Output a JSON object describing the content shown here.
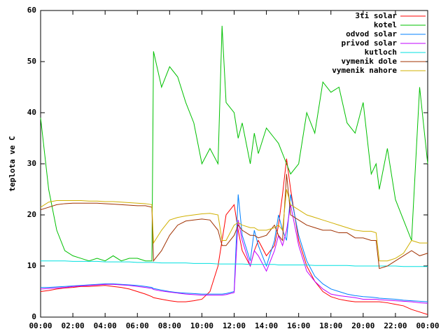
{
  "chart_data": {
    "type": "line",
    "y_label": "teplota ve C",
    "x": [
      0,
      0.5,
      1,
      1.5,
      2,
      2.5,
      3,
      3.5,
      4,
      4.5,
      5,
      5.5,
      6,
      6.5,
      6.9,
      7,
      7.5,
      8,
      8.5,
      9,
      9.5,
      10,
      10.5,
      11,
      11.25,
      11.5,
      12,
      12.25,
      12.5,
      13,
      13.25,
      13.5,
      14,
      14.5,
      14.75,
      15,
      15.25,
      15.5,
      16,
      16.5,
      17,
      17.5,
      18,
      18.5,
      19,
      19.5,
      20,
      20.5,
      20.8,
      21,
      21.5,
      22,
      22.5,
      23,
      23.5,
      24
    ],
    "xlim": [
      0,
      24
    ],
    "xticks": [
      {
        "value": 0,
        "label": "00:00"
      },
      {
        "value": 2,
        "label": "02:00"
      },
      {
        "value": 4,
        "label": "04:00"
      },
      {
        "value": 6,
        "label": "06:00"
      },
      {
        "value": 8,
        "label": "08:00"
      },
      {
        "value": 10,
        "label": "10:00"
      },
      {
        "value": 12,
        "label": "12:00"
      },
      {
        "value": 14,
        "label": "14:00"
      },
      {
        "value": 16,
        "label": "16:00"
      },
      {
        "value": 18,
        "label": "18:00"
      },
      {
        "value": 20,
        "label": "20:00"
      },
      {
        "value": 22,
        "label": "22:00"
      },
      {
        "value": 24,
        "label": "00:00"
      }
    ],
    "ylim": [
      0,
      60
    ],
    "yticks": [
      0,
      10,
      20,
      30,
      40,
      50,
      60
    ],
    "legend": "upper right",
    "series": [
      {
        "name": "3ti solar",
        "color": "#ff0000",
        "values": [
          5,
          5.2,
          5.5,
          5.7,
          5.8,
          6,
          6,
          6.1,
          6.2,
          6,
          5.8,
          5.5,
          5,
          4.5,
          4,
          3.8,
          3.5,
          3.2,
          3,
          3,
          3.2,
          3.5,
          5,
          10,
          15,
          20,
          22,
          17,
          13,
          10,
          13,
          15,
          12,
          14,
          18,
          24,
          31,
          25,
          15,
          10,
          7,
          5,
          4,
          3.5,
          3.2,
          3,
          3,
          3,
          3,
          3,
          2.8,
          2.5,
          2.2,
          1.5,
          1,
          0.5
        ]
      },
      {
        "name": "kotel",
        "color": "#00c000",
        "values": [
          39,
          25,
          17,
          13,
          12,
          11.5,
          11,
          11.5,
          11,
          12,
          11,
          11.5,
          11.5,
          11,
          11,
          52,
          45,
          49,
          47,
          42,
          38,
          30,
          33,
          30,
          57,
          42,
          40,
          35,
          38,
          30,
          36,
          32,
          37,
          35,
          34,
          32,
          30,
          28,
          30,
          40,
          36,
          46,
          44,
          45,
          38,
          36,
          42,
          28,
          30,
          25,
          33,
          23,
          19,
          15,
          45,
          30
        ]
      },
      {
        "name": "odvod solar",
        "color": "#0080ff",
        "values": [
          5.8,
          5.8,
          5.9,
          6,
          6.1,
          6.2,
          6.3,
          6.4,
          6.5,
          6.5,
          6.4,
          6.3,
          6.2,
          6,
          5.8,
          5.6,
          5.3,
          5,
          4.8,
          4.7,
          4.6,
          4.5,
          4.5,
          4.5,
          4.5,
          4.6,
          5,
          24,
          16,
          11,
          17,
          14,
          10,
          15,
          20,
          17,
          15,
          24,
          16,
          11,
          8,
          6.5,
          5.5,
          5,
          4.5,
          4.2,
          4,
          3.9,
          3.8,
          3.7,
          3.6,
          3.5,
          3.3,
          3.2,
          3.1,
          3
        ]
      },
      {
        "name": "privod solar",
        "color": "#c000ff",
        "values": [
          5.5,
          5.6,
          5.7,
          5.8,
          6,
          6.1,
          6.2,
          6.3,
          6.4,
          6.4,
          6.3,
          6.2,
          6,
          5.8,
          5.6,
          5.4,
          5.1,
          4.9,
          4.7,
          4.5,
          4.4,
          4.3,
          4.3,
          4.3,
          4.3,
          4.4,
          4.8,
          19,
          15,
          10,
          13,
          12,
          9,
          13,
          16,
          14,
          17,
          22,
          14,
          9,
          7,
          5.5,
          4.5,
          4.2,
          4,
          3.8,
          3.5,
          3.5,
          3.5,
          3.4,
          3.3,
          3.2,
          3.1,
          3,
          2.8,
          2.7
        ]
      },
      {
        "name": "kutloch",
        "color": "#00e0e0",
        "values": [
          11,
          11,
          11,
          11,
          10.9,
          10.9,
          10.9,
          10.9,
          10.8,
          10.8,
          10.8,
          10.8,
          10.7,
          10.7,
          10.7,
          10.7,
          10.6,
          10.6,
          10.6,
          10.6,
          10.5,
          10.5,
          10.5,
          10.4,
          10.4,
          10.4,
          10.4,
          10.4,
          10.4,
          10.3,
          10.3,
          10.3,
          10.3,
          10.3,
          10.2,
          10.2,
          10.2,
          10.2,
          10.2,
          10.2,
          10.1,
          10.1,
          10.1,
          10.1,
          10.1,
          10,
          10,
          10,
          10,
          10,
          10,
          10,
          9.9,
          9.9,
          9.9,
          9.9
        ]
      },
      {
        "name": "vymenik dole",
        "color": "#a03000",
        "values": [
          21,
          21.5,
          22,
          22.2,
          22.3,
          22.3,
          22.3,
          22.3,
          22.2,
          22.1,
          22,
          21.9,
          21.8,
          21.8,
          21.5,
          11,
          13,
          16,
          18,
          18.8,
          19,
          19.2,
          19,
          17,
          14,
          14,
          16,
          18,
          17,
          16,
          16,
          15.5,
          16,
          18,
          16,
          15,
          28,
          20,
          19,
          18,
          17.5,
          17,
          17,
          16.5,
          16.5,
          15.5,
          15.5,
          15,
          15,
          9.5,
          10,
          11,
          12,
          13,
          12,
          12.5
        ]
      },
      {
        "name": "vymenik nahore",
        "color": "#d0b000",
        "values": [
          21.5,
          22.5,
          22.8,
          22.8,
          22.8,
          22.8,
          22.7,
          22.7,
          22.6,
          22.6,
          22.5,
          22.4,
          22.3,
          22.2,
          22,
          14.5,
          17,
          19,
          19.5,
          19.8,
          20,
          20.2,
          20.3,
          20,
          15,
          15,
          18,
          18.5,
          18,
          17.5,
          17.5,
          17,
          17,
          17.5,
          18,
          17,
          25,
          22,
          21,
          20,
          19.5,
          19,
          18.5,
          18,
          17.5,
          17,
          16.8,
          16.8,
          16.5,
          11,
          11,
          11.5,
          12.5,
          15,
          14.5,
          14.5
        ]
      }
    ]
  }
}
